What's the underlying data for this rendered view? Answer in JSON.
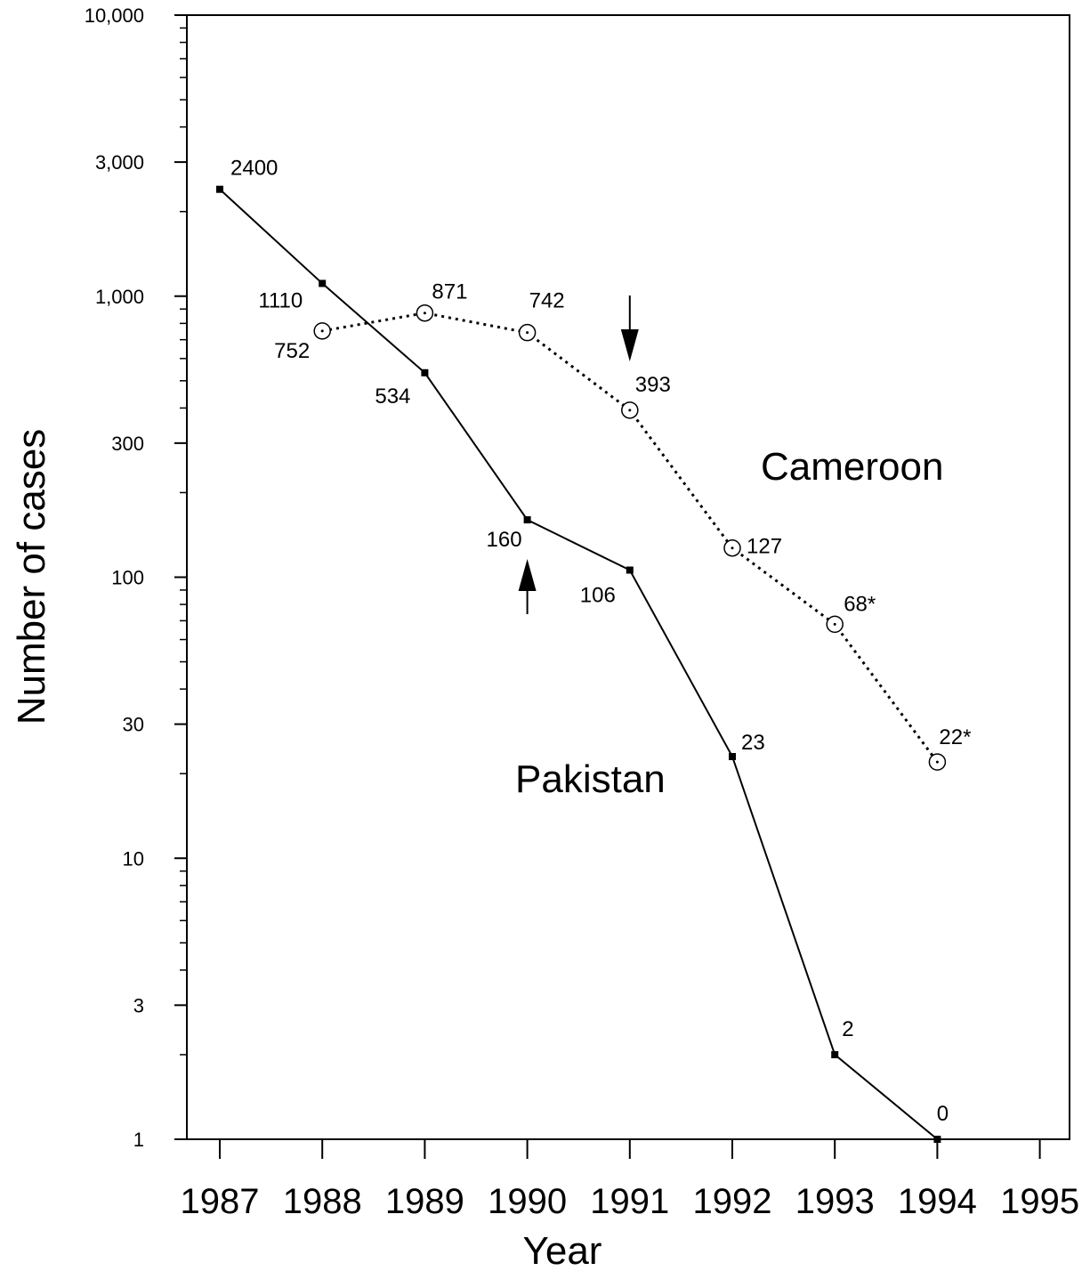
{
  "chart_data": {
    "type": "line",
    "xlabel": "Year",
    "ylabel": "Number of cases",
    "x": [
      1987,
      1988,
      1989,
      1990,
      1991,
      1992,
      1993,
      1994
    ],
    "xlim": [
      1987,
      1995
    ],
    "x_ticks": [
      "1987",
      "1988",
      "1989",
      "1990",
      "1991",
      "1992",
      "1993",
      "1994",
      "1995"
    ],
    "yscale": "log",
    "ylim": [
      1,
      10000
    ],
    "y_ticks": [
      {
        "value": 1,
        "label": "1"
      },
      {
        "value": 3,
        "label": "3"
      },
      {
        "value": 10,
        "label": "10"
      },
      {
        "value": 30,
        "label": "30"
      },
      {
        "value": 100,
        "label": "100"
      },
      {
        "value": 300,
        "label": "300"
      },
      {
        "value": 1000,
        "label": "1,000"
      },
      {
        "value": 3000,
        "label": "3,000"
      },
      {
        "value": 10000,
        "label": "10,000"
      }
    ],
    "grid": false,
    "legend": "none",
    "series": [
      {
        "name": "Pakistan",
        "style": "solid",
        "marker": "square",
        "color": "#000000",
        "x": [
          1987,
          1988,
          1989,
          1990,
          1991,
          1992,
          1993,
          1994
        ],
        "values": [
          2400,
          1110,
          534,
          160,
          106,
          23,
          2,
          0
        ],
        "labels": [
          "2400",
          "1110",
          "534",
          "160",
          "106",
          "23",
          "2",
          "0"
        ]
      },
      {
        "name": "Cameroon",
        "style": "dotted",
        "marker": "circle",
        "color": "#000000",
        "x": [
          1988,
          1989,
          1990,
          1991,
          1992,
          1993,
          1994
        ],
        "values": [
          752,
          871,
          742,
          393,
          127,
          68,
          22
        ],
        "labels": [
          "752",
          "871",
          "742",
          "393",
          "127",
          "68*",
          "22*"
        ]
      }
    ],
    "annotations": [
      {
        "type": "arrow",
        "direction": "up",
        "x": 1990,
        "series": "Pakistan"
      },
      {
        "type": "arrow",
        "direction": "down",
        "x": 1991,
        "series": "Cameroon"
      }
    ]
  }
}
